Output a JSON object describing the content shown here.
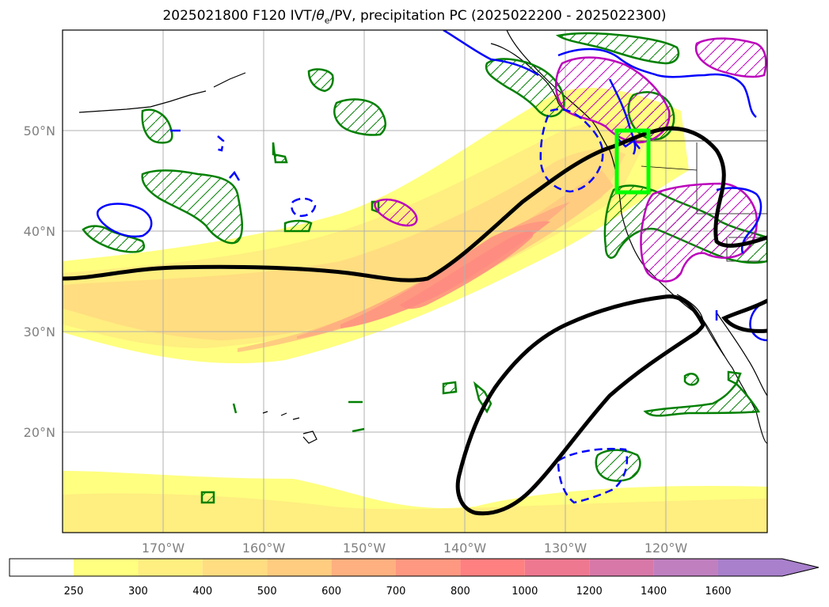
{
  "title": {
    "prefix": "2025021800 F120 IVT/",
    "theta": "θ",
    "theta_sub": "e",
    "suffix": "/PV, precipitation PC (2025022200 - 2025022300)"
  },
  "map": {
    "extent": {
      "lon_min": -180,
      "lon_max": -110,
      "lat_min": 10,
      "lat_max": 60
    },
    "lat_ticks": [
      {
        "value": 20,
        "label": "20°N"
      },
      {
        "value": 30,
        "label": "30°N"
      },
      {
        "value": 40,
        "label": "40°N"
      },
      {
        "value": 50,
        "label": "50°N"
      }
    ],
    "lon_ticks": [
      {
        "value": -170,
        "label": "170°W"
      },
      {
        "value": -160,
        "label": "160°W"
      },
      {
        "value": -150,
        "label": "150°W"
      },
      {
        "value": -140,
        "label": "140°W"
      },
      {
        "value": -130,
        "label": "130°W"
      },
      {
        "value": -120,
        "label": "120°W"
      }
    ],
    "gridlines": true,
    "highlight_box": {
      "lon_min": -125,
      "lon_max": -121.8,
      "lat_min": 44,
      "lat_max": 50,
      "color": "#00ff00"
    },
    "colors": {
      "pv": "#000000",
      "theta_e_pos": "#0000ff",
      "precip": "#008000",
      "magenta": "#bb00bb",
      "coast": "#000000"
    }
  },
  "colorbar": {
    "levels": [
      "250",
      "300",
      "400",
      "500",
      "600",
      "700",
      "800",
      "1000",
      "1200",
      "1400",
      "1600"
    ],
    "colors": [
      "#ffff80",
      "#ffee80",
      "#ffdd80",
      "#ffcc80",
      "#ffb080",
      "#ff9880",
      "#ff8080",
      "#ee7890",
      "#d878a8",
      "#c080c0",
      "#a880cc"
    ],
    "under_color": "#ffffff",
    "extend": "max"
  }
}
